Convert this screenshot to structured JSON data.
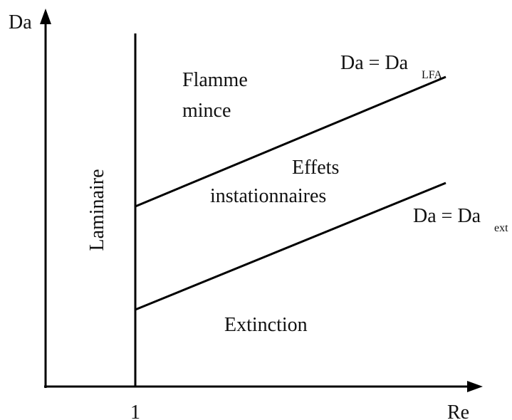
{
  "axes": {
    "y_label": "Da",
    "x_label": "Re",
    "x_mark": "1"
  },
  "regions": {
    "laminar": "Laminaire",
    "thin_flame": [
      "Flamme",
      "mince"
    ],
    "unsteady": [
      "Effets",
      "instationnaires"
    ],
    "extinction": "Extinction"
  },
  "lines": [
    {
      "label": "Da = Da",
      "subscript": "LFA"
    },
    {
      "label": "Da = Da",
      "subscript": "ext"
    }
  ]
}
